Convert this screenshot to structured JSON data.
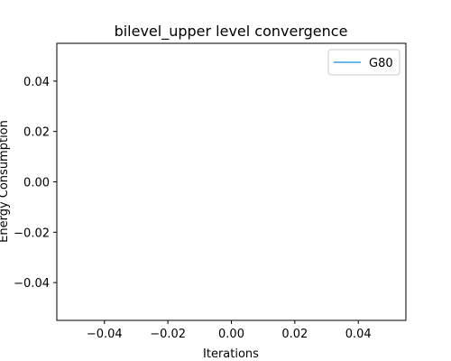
{
  "chart_data": {
    "type": "line",
    "title": "bilevel_upper level convergence",
    "xlabel": "Iterations",
    "ylabel": "Energy Consumption",
    "xlim": [
      -0.055,
      0.055
    ],
    "ylim": [
      -0.055,
      0.055
    ],
    "xticks": [
      -0.04,
      -0.02,
      0.0,
      0.02,
      0.04
    ],
    "xtick_labels": [
      "−0.04",
      "−0.02",
      "0.00",
      "0.02",
      "0.04"
    ],
    "yticks": [
      0.04,
      0.02,
      0.0,
      -0.02,
      -0.04
    ],
    "ytick_labels": [
      "0.04",
      "0.02",
      "0.00",
      "−0.02",
      "−0.04"
    ],
    "grid": false,
    "legend_position": "top-right",
    "series": [
      {
        "name": "G80",
        "color": "#3a9fe0",
        "x": [],
        "y": []
      }
    ]
  }
}
